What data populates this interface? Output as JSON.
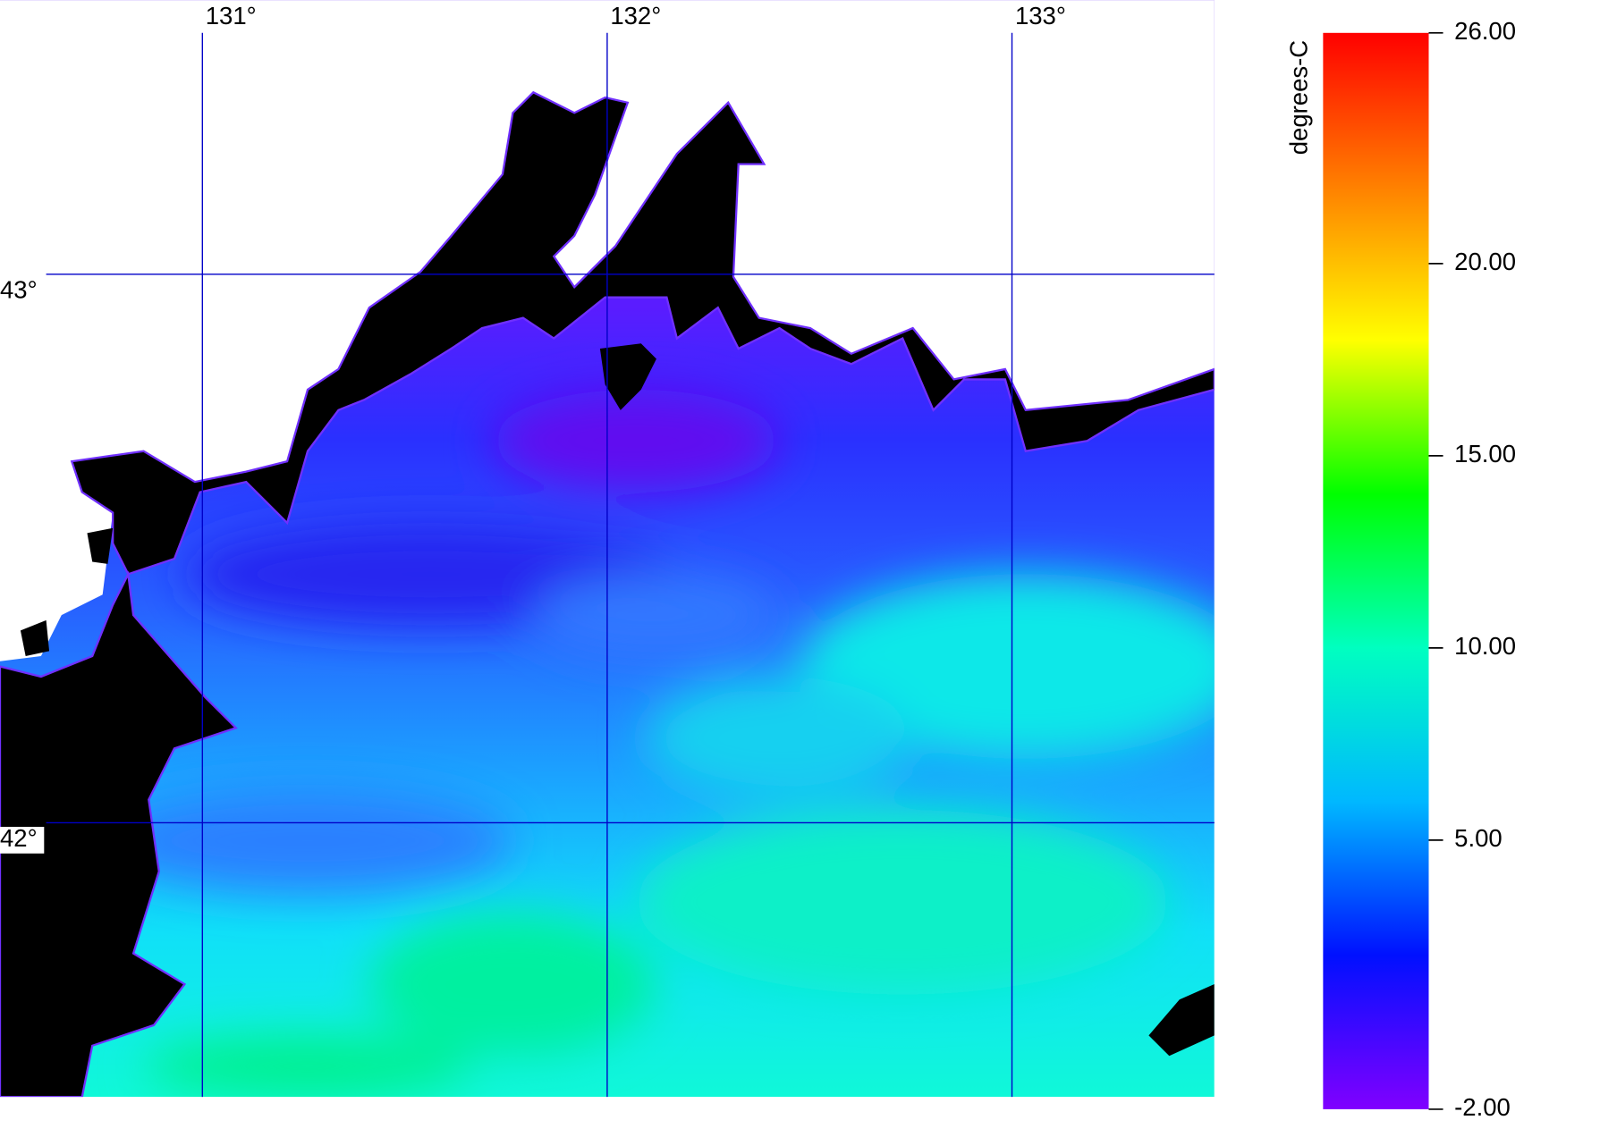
{
  "map": {
    "lonlim": [
      130.5,
      133.5
    ],
    "latlim": [
      41.5,
      43.5
    ],
    "lon_ticks": [
      {
        "value": 131,
        "label": "131°"
      },
      {
        "value": 132,
        "label": "132°"
      },
      {
        "value": 133,
        "label": "133°"
      }
    ],
    "lat_ticks": [
      {
        "value": 43,
        "label": "43°"
      },
      {
        "value": 42,
        "label": "42°"
      }
    ],
    "grid_color": "#0000c8",
    "colorbar": {
      "label": "degrees-C",
      "lim": [
        -2,
        26
      ],
      "ticks": [
        {
          "value": 26,
          "label": "26.00"
        },
        {
          "value": 20,
          "label": "20.00"
        },
        {
          "value": 15,
          "label": "15.00"
        },
        {
          "value": 10,
          "label": "10.00"
        },
        {
          "value": 5,
          "label": "5.00"
        },
        {
          "value": -2,
          "label": "-2.00"
        }
      ],
      "colors": [
        "#8000ff",
        "#0010ff",
        "#00b8ff",
        "#00ffc0",
        "#00ff00",
        "#ffff00",
        "#ff8000",
        "#ff0000"
      ]
    }
  }
}
